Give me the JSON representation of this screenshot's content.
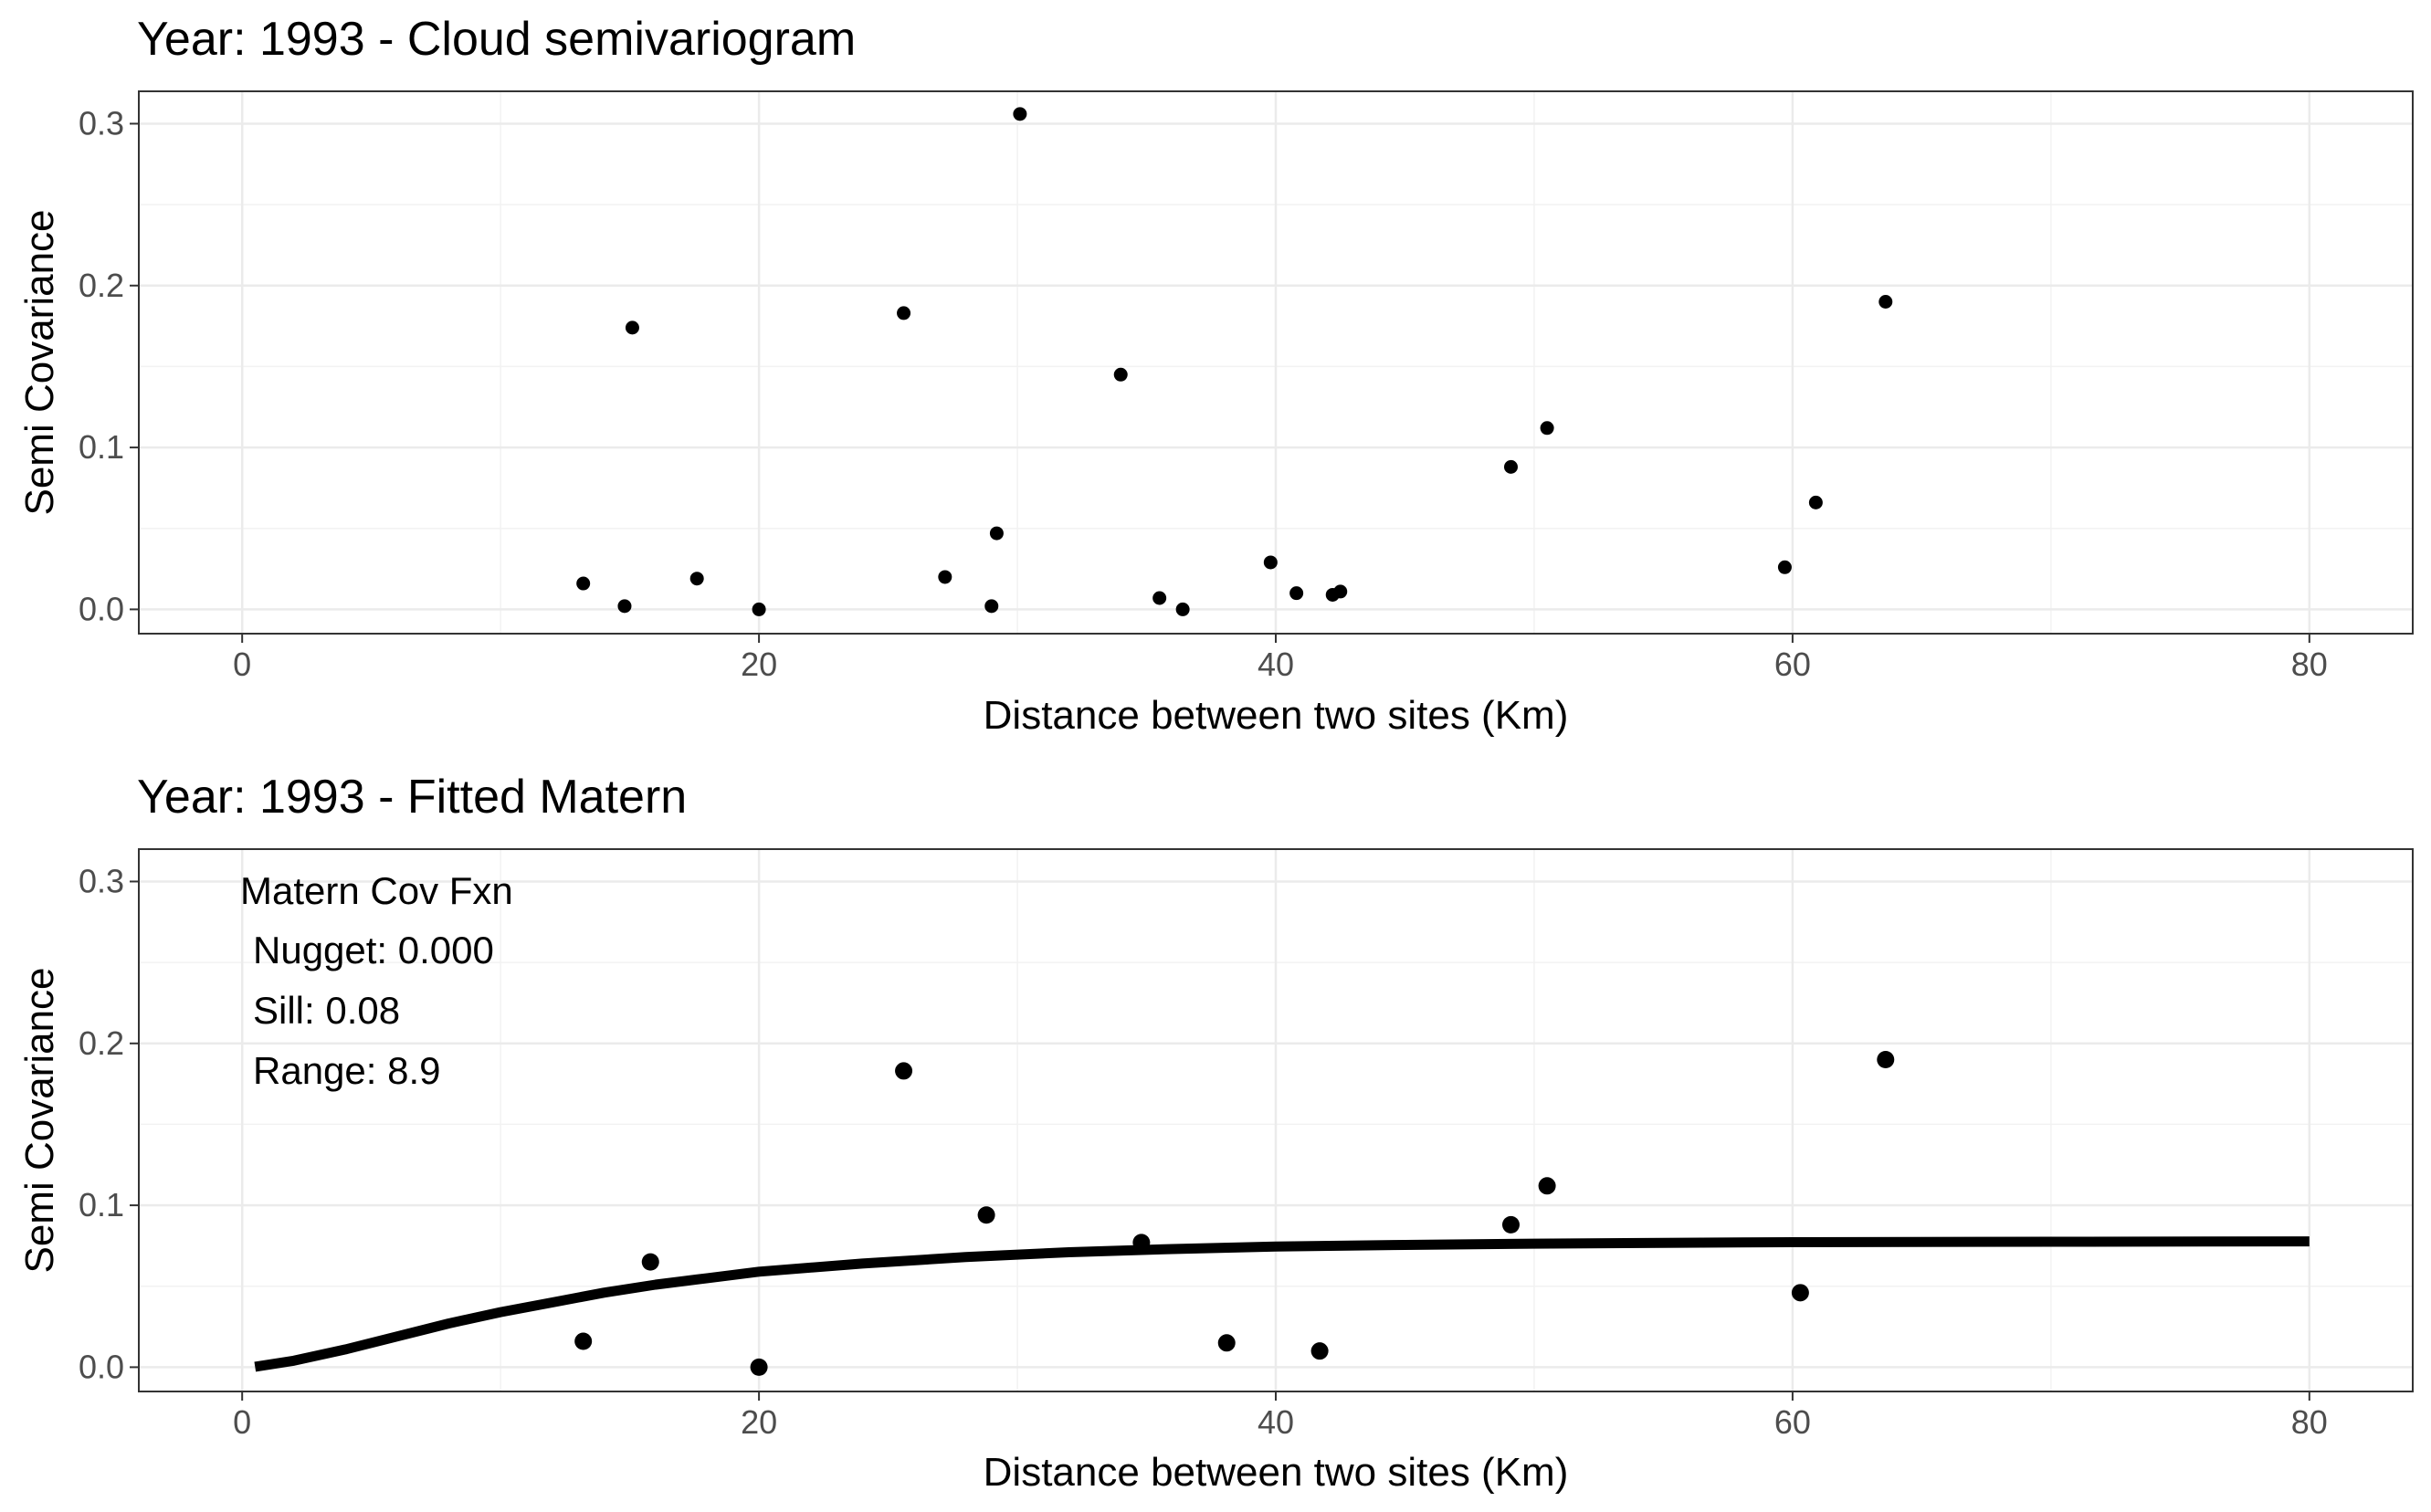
{
  "chart_data": [
    {
      "type": "scatter",
      "title": "Year: 1993 - Cloud semivariogram",
      "xlabel": "Distance between two sites (Km)",
      "ylabel": "Semi Covariance",
      "xlim": [
        -4,
        84
      ],
      "ylim": [
        -0.015,
        0.32
      ],
      "xticks": [
        0,
        20,
        40,
        60,
        80
      ],
      "yticks": [
        0.0,
        0.1,
        0.2,
        0.3
      ],
      "xtick_labels": [
        "0",
        "20",
        "40",
        "60",
        "80"
      ],
      "ytick_labels": [
        "0.0",
        "0.1",
        "0.2",
        "0.3"
      ],
      "grid": true,
      "point_color": "#000000",
      "series": [
        {
          "points": [
            [
              13.2,
              0.016
            ],
            [
              14.8,
              0.002
            ],
            [
              15.1,
              0.174
            ],
            [
              17.6,
              0.019
            ],
            [
              20.0,
              0.0
            ],
            [
              25.6,
              0.183
            ],
            [
              27.2,
              0.02
            ],
            [
              29.0,
              0.002
            ],
            [
              29.2,
              0.047
            ],
            [
              30.1,
              0.306
            ],
            [
              34.0,
              0.145
            ],
            [
              35.5,
              0.007
            ],
            [
              36.4,
              0.0
            ],
            [
              39.8,
              0.029
            ],
            [
              40.8,
              0.01
            ],
            [
              42.2,
              0.009
            ],
            [
              42.5,
              0.011
            ],
            [
              49.1,
              0.088
            ],
            [
              50.5,
              0.112
            ],
            [
              59.7,
              0.026
            ],
            [
              60.9,
              0.066
            ],
            [
              63.6,
              0.19
            ]
          ]
        }
      ]
    },
    {
      "type": "scatter",
      "title": "Year: 1993 - Fitted Matern",
      "xlabel": "Distance between two sites (Km)",
      "ylabel": "Semi Covariance",
      "xlim": [
        -4,
        84
      ],
      "ylim": [
        -0.015,
        0.32
      ],
      "xticks": [
        0,
        20,
        40,
        60,
        80
      ],
      "yticks": [
        0.0,
        0.1,
        0.2,
        0.3
      ],
      "xtick_labels": [
        "0",
        "20",
        "40",
        "60",
        "80"
      ],
      "ytick_labels": [
        "0.0",
        "0.1",
        "0.2",
        "0.3"
      ],
      "grid": true,
      "point_color": "#000000",
      "annotation": [
        "Matern Cov Fxn",
        "Nugget: 0.000",
        "Sill: 0.08",
        "Range: 8.9"
      ],
      "series": [
        {
          "points": [
            [
              13.2,
              0.016
            ],
            [
              15.8,
              0.065
            ],
            [
              20.0,
              0.0
            ],
            [
              25.6,
              0.183
            ],
            [
              28.8,
              0.094
            ],
            [
              34.8,
              0.077
            ],
            [
              38.1,
              0.015
            ],
            [
              41.7,
              0.01
            ],
            [
              49.1,
              0.088
            ],
            [
              50.5,
              0.112
            ],
            [
              60.3,
              0.046
            ],
            [
              63.6,
              0.19
            ]
          ]
        },
        {
          "line": [
            [
              0.5,
              0.0003
            ],
            [
              2,
              0.004
            ],
            [
              4,
              0.011
            ],
            [
              6,
              0.019
            ],
            [
              8,
              0.027
            ],
            [
              10,
              0.034
            ],
            [
              12,
              0.04
            ],
            [
              14,
              0.046
            ],
            [
              16,
              0.051
            ],
            [
              18,
              0.055
            ],
            [
              20,
              0.059
            ],
            [
              24,
              0.064
            ],
            [
              28,
              0.068
            ],
            [
              32,
              0.071
            ],
            [
              36,
              0.073
            ],
            [
              40,
              0.0745
            ],
            [
              45,
              0.0755
            ],
            [
              50,
              0.0763
            ],
            [
              55,
              0.0768
            ],
            [
              60,
              0.0772
            ],
            [
              70,
              0.0775
            ],
            [
              80,
              0.0777
            ]
          ]
        }
      ]
    }
  ]
}
